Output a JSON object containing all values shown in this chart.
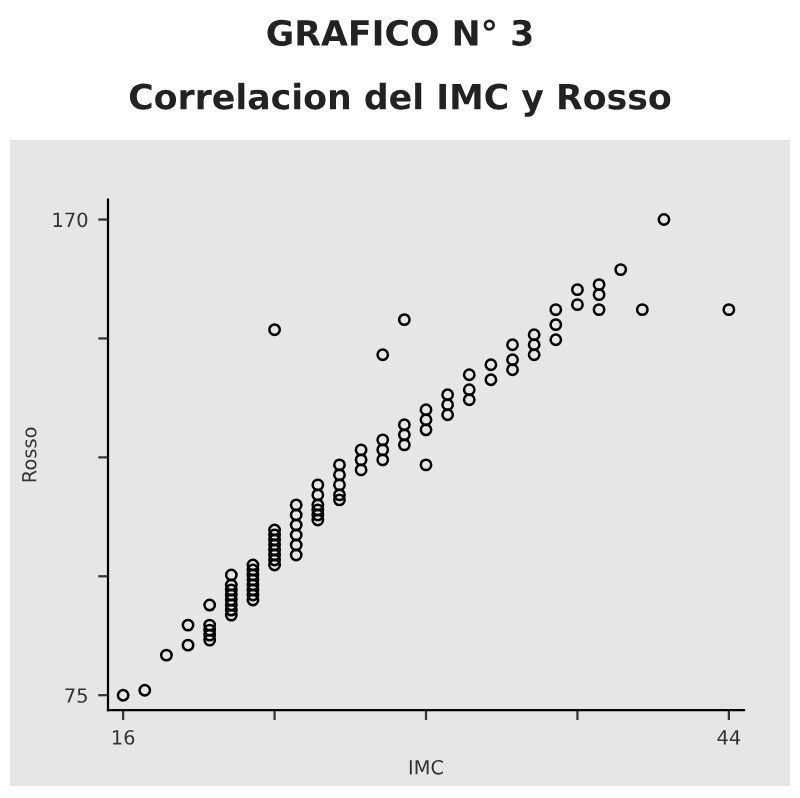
{
  "chart_data": {
    "type": "scatter",
    "title": "GRAFICO N° 3",
    "subtitle": "Correlacion del IMC y Rosso",
    "xlabel": "IMC",
    "ylabel": "Rosso",
    "x": [
      16,
      17,
      18,
      19,
      19,
      20,
      20,
      20,
      20,
      20,
      21,
      21,
      21,
      21,
      21,
      21,
      21,
      21,
      22,
      22,
      22,
      22,
      22,
      22,
      22,
      22,
      23,
      23,
      23,
      23,
      23,
      23,
      23,
      23,
      23,
      24,
      24,
      24,
      24,
      24,
      24,
      25,
      25,
      25,
      25,
      25,
      25,
      26,
      26,
      26,
      26,
      26,
      27,
      27,
      27,
      28,
      28,
      28,
      28,
      29,
      29,
      29,
      29,
      30,
      30,
      30,
      30,
      31,
      31,
      31,
      32,
      32,
      32,
      33,
      33,
      34,
      34,
      34,
      35,
      35,
      35,
      36,
      36,
      36,
      37,
      37,
      38,
      38,
      38,
      39,
      40,
      41,
      44
    ],
    "values": [
      75,
      76,
      83,
      89,
      85,
      93,
      89,
      88,
      87,
      86,
      99,
      97,
      96,
      95,
      94,
      93,
      92,
      91,
      101,
      100,
      99,
      98,
      97,
      96,
      95,
      94,
      148,
      108,
      107,
      106,
      105,
      104,
      103,
      102,
      101,
      113,
      111,
      109,
      107,
      105,
      103,
      117,
      115,
      113,
      112,
      111,
      110,
      121,
      119,
      117,
      115,
      114,
      124,
      122,
      120,
      143,
      126,
      124,
      122,
      150,
      129,
      127,
      125,
      132,
      130,
      128,
      121,
      135,
      133,
      131,
      139,
      136,
      134,
      141,
      138,
      145,
      142,
      140,
      147,
      145,
      143,
      152,
      149,
      146,
      156,
      153,
      157,
      155,
      152,
      160,
      152,
      170,
      152
    ],
    "color": "#000000",
    "marker": "circle",
    "xlim": [
      15.3,
      44.7
    ],
    "ylim": [
      72,
      174
    ],
    "xticks": [
      16,
      {
        "value": 23,
        "label": null
      },
      {
        "value": 30,
        "label": null
      },
      {
        "value": 37,
        "label": null
      },
      44
    ],
    "yticks": [
      75,
      {
        "value": 98.75,
        "label": null
      },
      {
        "value": 122.5,
        "label": null
      },
      {
        "value": 146.25,
        "label": null
      },
      170
    ],
    "grid": false
  }
}
